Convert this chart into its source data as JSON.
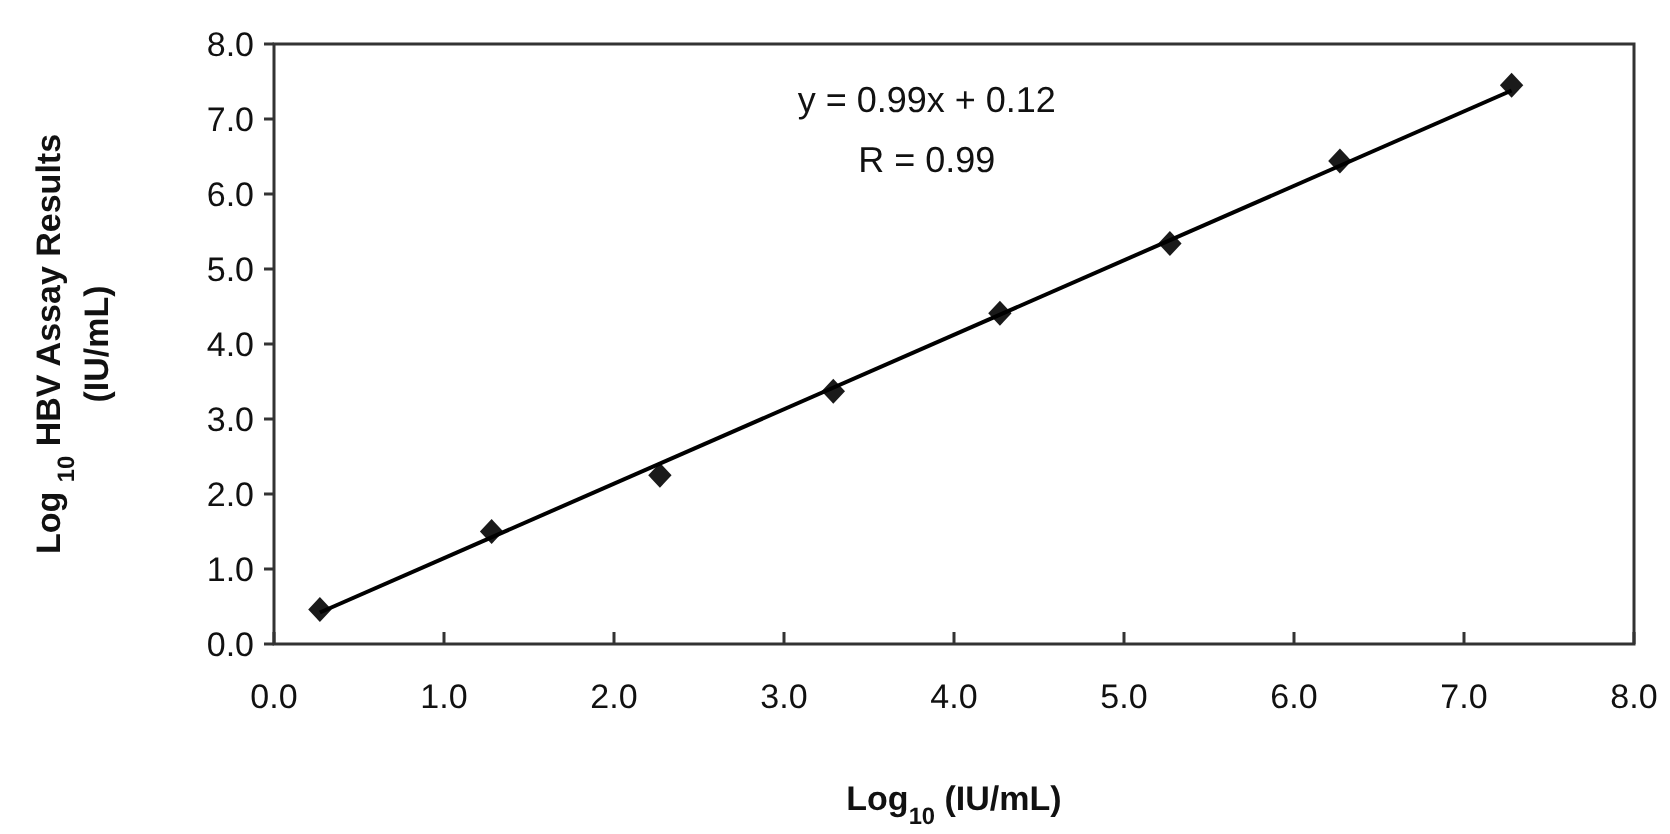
{
  "chart_data": {
    "type": "scatter",
    "xlabel": "Log$_{10}$ (IU/mL)",
    "ylabel": "Log $_{10}$ HBV Assay Results (IU/mL)",
    "xlim": [
      0,
      8
    ],
    "ylim": [
      0,
      8
    ],
    "xticks": [
      {
        "value": 0,
        "label": "0.0"
      },
      {
        "value": 1,
        "label": "1.0"
      },
      {
        "value": 2,
        "label": "2.0"
      },
      {
        "value": 3,
        "label": "3.0"
      },
      {
        "value": 4,
        "label": "4.0"
      },
      {
        "value": 5,
        "label": "5.0"
      },
      {
        "value": 6,
        "label": "6.0"
      },
      {
        "value": 7,
        "label": "7.0"
      },
      {
        "value": 8,
        "label": "8.0"
      }
    ],
    "yticks": [
      {
        "value": 0,
        "label": "0.0"
      },
      {
        "value": 1,
        "label": "1.0"
      },
      {
        "value": 2,
        "label": "2.0"
      },
      {
        "value": 3,
        "label": "3.0"
      },
      {
        "value": 4,
        "label": "4.0"
      },
      {
        "value": 5,
        "label": "5.0"
      },
      {
        "value": 6,
        "label": "6.0"
      },
      {
        "value": 7,
        "label": "7.0"
      },
      {
        "value": 8,
        "label": "8.0"
      }
    ],
    "series": [
      {
        "color": "#1a1a1a",
        "marker": "diamond",
        "x": [
          0.27,
          1.28,
          2.27,
          3.29,
          4.27,
          5.27,
          6.27,
          7.28
        ],
        "values": [
          0.46,
          1.5,
          2.25,
          3.37,
          4.41,
          5.34,
          6.44,
          7.45
        ]
      },
      {
        "type": "line",
        "color": "#000000",
        "marker": "none",
        "x": [
          0.27,
          7.28
        ],
        "values": [
          0.42,
          7.38
        ]
      }
    ],
    "annotations": [
      "y = 0.99x + 0.12",
      "R = 0.99"
    ],
    "grid": false
  }
}
